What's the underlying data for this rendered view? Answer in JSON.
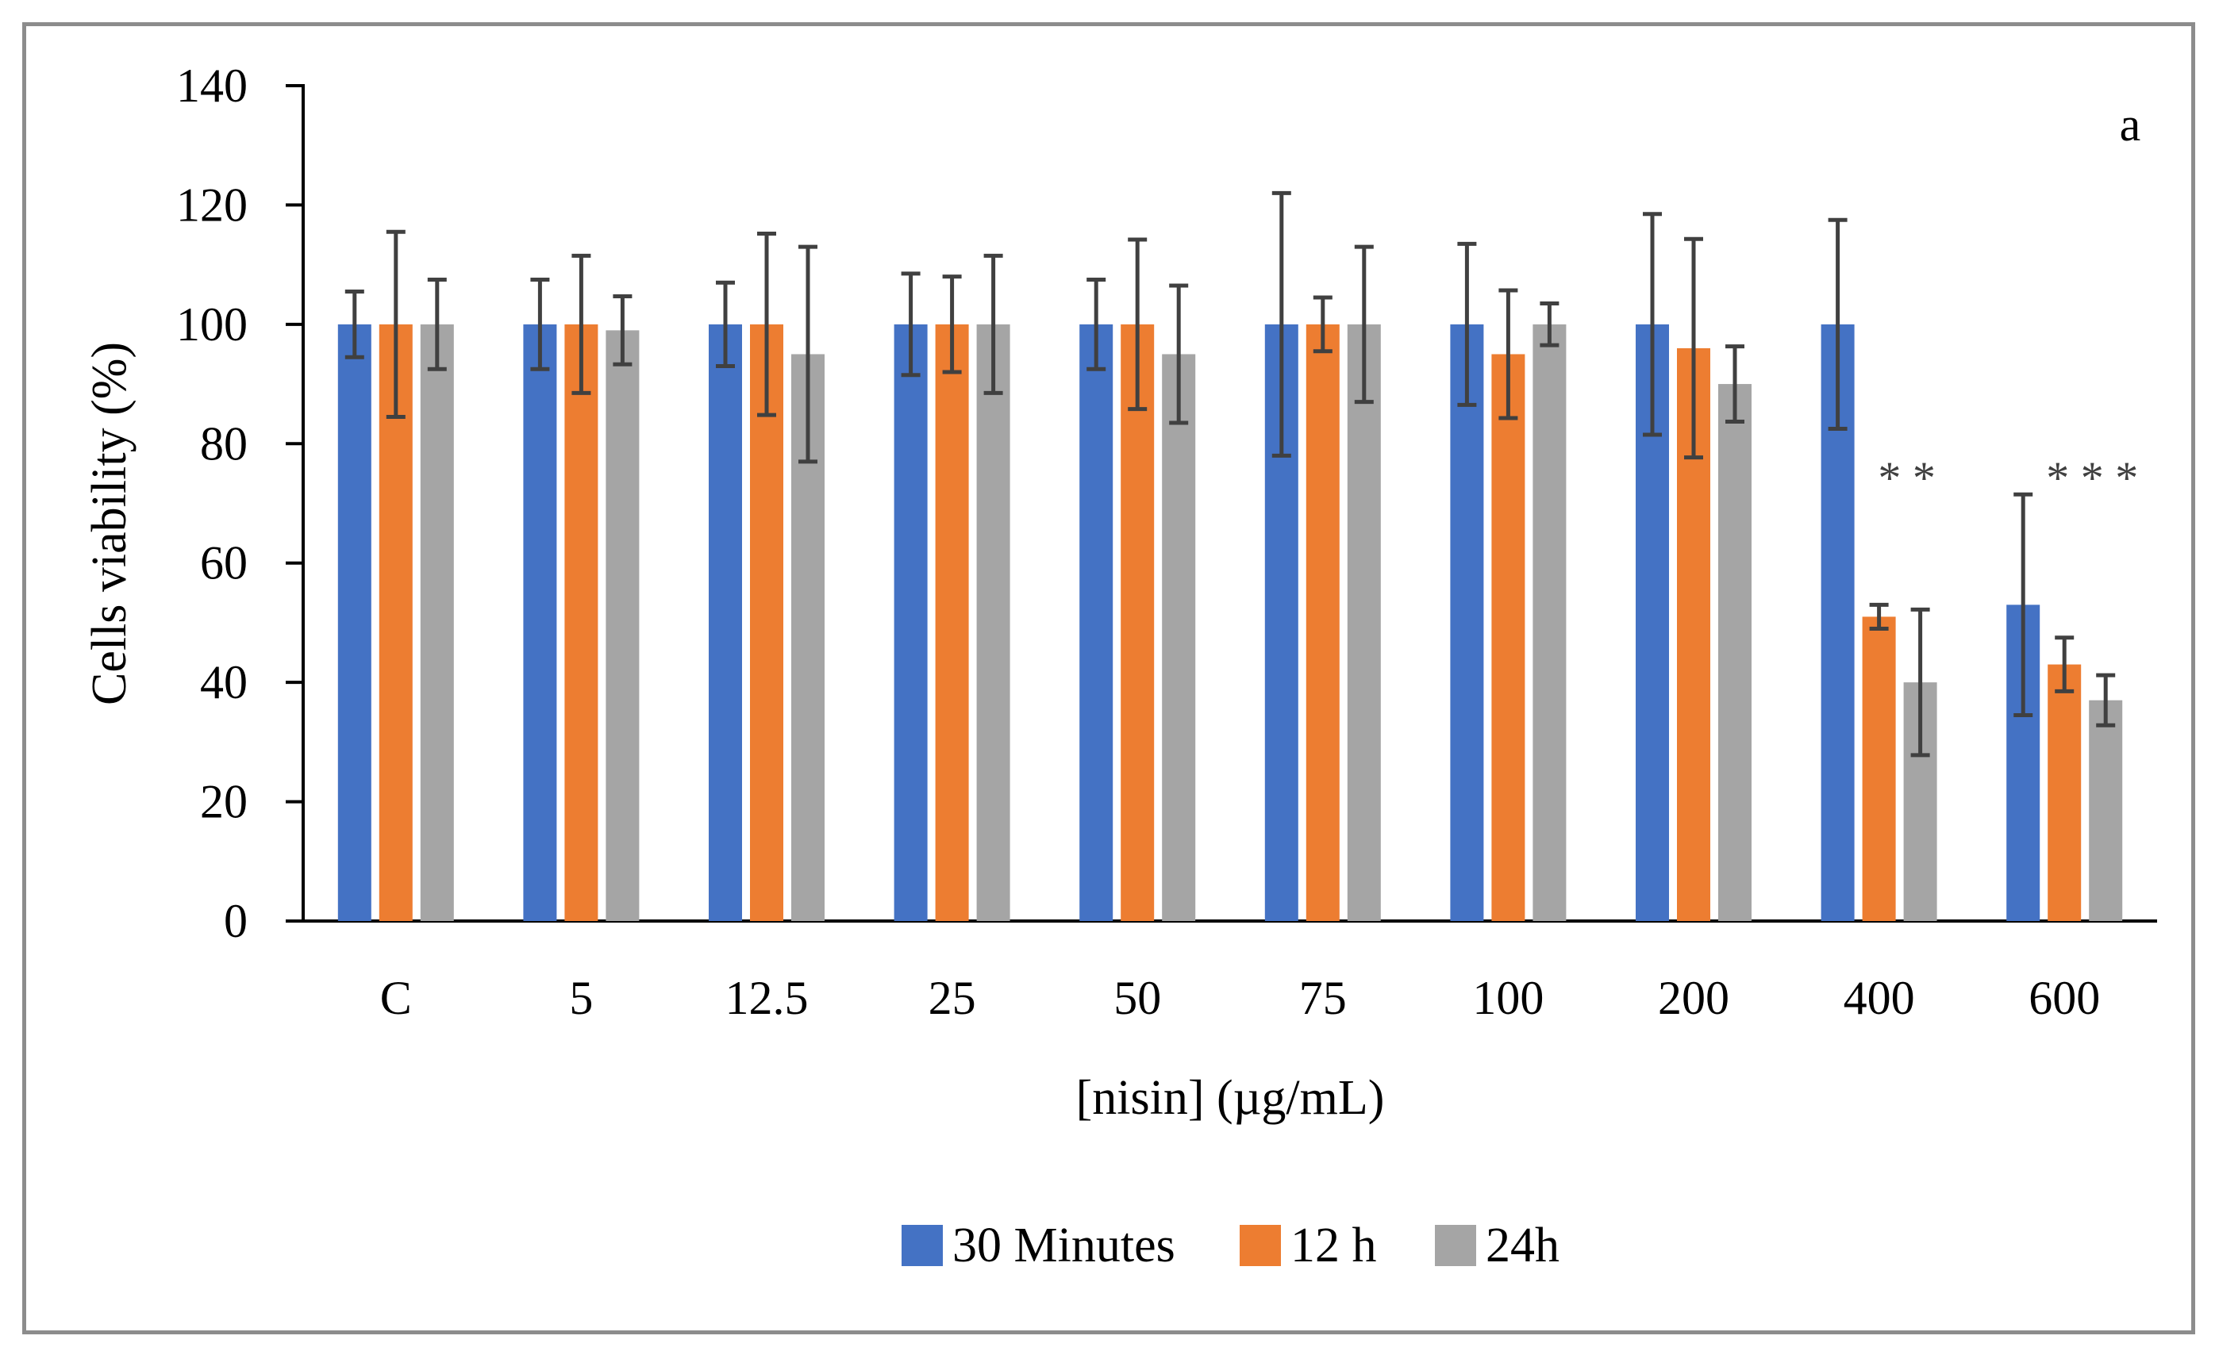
{
  "chart_data": {
    "type": "bar",
    "panel_label": "a",
    "xlabel": "[nisin] (µg/mL)",
    "ylabel": "Cells viability (%)",
    "ylim": [
      0,
      140
    ],
    "yticks": [
      0,
      20,
      40,
      60,
      80,
      100,
      120,
      140
    ],
    "categories": [
      "C",
      "5",
      "12.5",
      "25",
      "50",
      "75",
      "100",
      "200",
      "400",
      "600"
    ],
    "series": [
      {
        "name": "30 Minutes",
        "color": "#4472c4",
        "values": [
          100,
          100,
          100,
          100,
          100,
          100,
          100,
          100,
          100,
          53
        ],
        "errors": [
          5.5,
          7.5,
          7,
          8.5,
          7.5,
          22,
          13.5,
          18.5,
          17.5,
          18.5
        ]
      },
      {
        "name": "12 h",
        "color": "#ed7d31",
        "values": [
          100,
          100,
          100,
          100,
          100,
          100,
          95,
          96,
          51,
          43
        ],
        "errors": [
          15.5,
          11.5,
          15.2,
          8,
          14.2,
          4.5,
          10.7,
          18.3,
          2,
          4.5
        ]
      },
      {
        "name": "24h",
        "color": "#a5a5a5",
        "values": [
          100,
          99,
          95,
          100,
          95,
          100,
          100,
          90,
          40,
          37
        ],
        "errors": [
          7.5,
          5.7,
          18,
          11.5,
          11.5,
          13,
          3.5,
          6.3,
          12.2,
          4.2
        ]
      }
    ],
    "annotations": [
      {
        "category": "400",
        "text": "* *"
      },
      {
        "category": "600",
        "text": "* * *"
      }
    ],
    "legend": {
      "position": "bottom"
    },
    "grid": false
  }
}
